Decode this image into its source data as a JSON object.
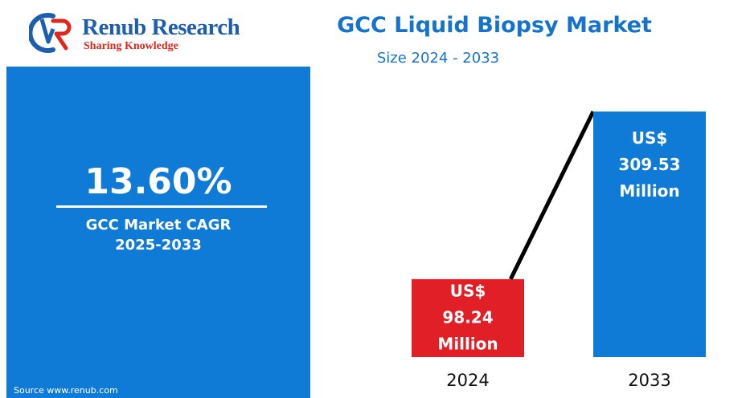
{
  "brand": {
    "name": "Renub Research",
    "tagline": "Sharing Knowledge",
    "colors": {
      "primary": "#1d5fae",
      "accent": "#e0271e"
    }
  },
  "header": {
    "title": "GCC Liquid Biopsy Market",
    "subtitle": "Size 2024 - 2033"
  },
  "cagr": {
    "value": "13.60%",
    "label_line1": "GCC Market CAGR",
    "label_line2": "2025-2033"
  },
  "source": "Source  www.renub.com",
  "chart_data": {
    "type": "bar",
    "title": "GCC Liquid Biopsy Market",
    "subtitle": "Size 2024 - 2033",
    "categories": [
      "2024",
      "2033"
    ],
    "series": [
      {
        "values": [
          98.24,
          309.53
        ]
      }
    ],
    "unit": "US$ Million",
    "data_labels": [
      [
        "US$",
        "98.24",
        "Million"
      ],
      [
        "US$",
        "309.53",
        "Million"
      ]
    ],
    "colors": [
      "#e11f26",
      "#0f7bd7"
    ],
    "trend_line": true,
    "ylim": [
      0,
      309.53
    ],
    "grid": false,
    "legend": "none"
  }
}
